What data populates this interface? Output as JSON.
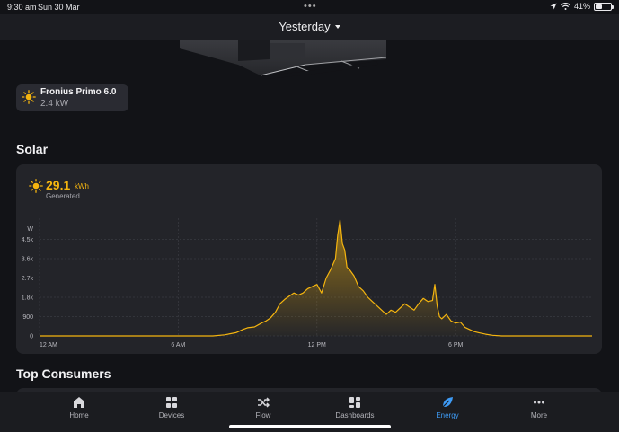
{
  "status_bar": {
    "time": "9:30 am",
    "date": "Sun 30 Mar",
    "battery": "41%",
    "battery_level": 0.41
  },
  "header": {
    "period": "Yesterday"
  },
  "device": {
    "name": "Fronius Primo 6.0",
    "power": "2.4 kW",
    "icon": "sun-icon"
  },
  "solar": {
    "title": "Solar",
    "value": "29.1",
    "unit": "kWh",
    "label": "Generated",
    "accent": "#f5b50f"
  },
  "chart_data": {
    "type": "area",
    "ylabel": "W",
    "ylim": [
      0,
      5400
    ],
    "yticks": [
      "0",
      "900",
      "1.8k",
      "2.7k",
      "3.6k",
      "4.5k"
    ],
    "yticks_values": [
      0,
      900,
      1800,
      2700,
      3600,
      4500
    ],
    "xticks": [
      "12 AM",
      "6 AM",
      "12 PM",
      "6 PM"
    ],
    "xticks_hours": [
      0,
      6,
      12,
      18
    ],
    "xlim": [
      0,
      23.9
    ],
    "color": "#f5b50f",
    "x": [
      0,
      7.5,
      8.0,
      8.5,
      8.8,
      9.0,
      9.3,
      9.6,
      9.8,
      10.0,
      10.2,
      10.4,
      10.6,
      10.8,
      11.0,
      11.2,
      11.4,
      11.6,
      11.8,
      12.0,
      12.2,
      12.4,
      12.6,
      12.8,
      12.9,
      13.0,
      13.1,
      13.2,
      13.3,
      13.4,
      13.6,
      13.8,
      14.0,
      14.2,
      14.4,
      14.6,
      14.8,
      15.0,
      15.2,
      15.4,
      15.6,
      15.8,
      16.0,
      16.2,
      16.4,
      16.6,
      16.8,
      17.0,
      17.1,
      17.2,
      17.3,
      17.4,
      17.6,
      17.8,
      18.0,
      18.2,
      18.4,
      18.6,
      18.8,
      19.0,
      19.3,
      19.6,
      20.0,
      23.9
    ],
    "y": [
      0,
      0,
      50,
      150,
      300,
      380,
      420,
      600,
      700,
      850,
      1100,
      1500,
      1700,
      1850,
      2000,
      1900,
      2000,
      2200,
      2300,
      2400,
      2000,
      2700,
      3100,
      3600,
      4700,
      5400,
      4300,
      4000,
      3200,
      3100,
      2800,
      2300,
      2100,
      1800,
      1600,
      1400,
      1200,
      1000,
      1200,
      1100,
      1300,
      1500,
      1350,
      1200,
      1500,
      1750,
      1600,
      1650,
      2400,
      1400,
      900,
      800,
      1000,
      700,
      600,
      650,
      400,
      300,
      200,
      150,
      80,
      30,
      0,
      0
    ]
  },
  "top_consumers": {
    "title": "Top Consumers"
  },
  "tabs": [
    {
      "label": "Home",
      "icon": "home-icon"
    },
    {
      "label": "Devices",
      "icon": "devices-icon"
    },
    {
      "label": "Flow",
      "icon": "flow-icon"
    },
    {
      "label": "Dashboards",
      "icon": "dashboards-icon"
    },
    {
      "label": "Energy",
      "icon": "energy-icon",
      "active": true
    },
    {
      "label": "More",
      "icon": "more-icon"
    }
  ],
  "colors": {
    "background": "#121317",
    "card": "#232429",
    "accent_active_tab": "#3e9bf5",
    "solar": "#f5b50f"
  }
}
